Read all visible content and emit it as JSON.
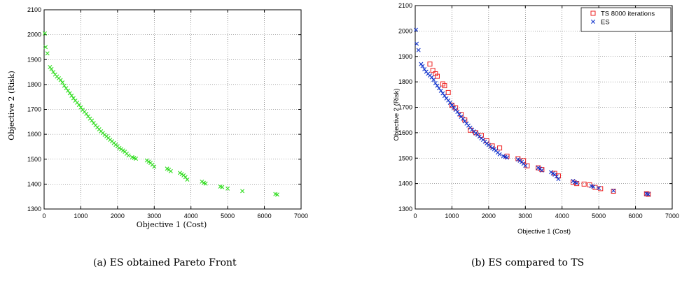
{
  "chart_data": [
    {
      "type": "scatter",
      "xlabel": "Objective 1 (Cost)",
      "ylabel": "Objective 2 (Risk)",
      "xlim": [
        0,
        7000
      ],
      "ylim": [
        1300,
        2100
      ],
      "xticks": [
        "0",
        "1000",
        "2000",
        "3000",
        "4000",
        "5000",
        "6000",
        "7000"
      ],
      "yticks": [
        "1300",
        "1400",
        "1500",
        "1600",
        "1700",
        "1800",
        "1900",
        "2000",
        "2100"
      ],
      "grid": true,
      "marker": "x",
      "color": "#33dd22",
      "caption": "(a) ES obtained Pareto Front",
      "series": [
        {
          "x": [
            20,
            40,
            90,
            160,
            200,
            250,
            300,
            350,
            400,
            450,
            500,
            550,
            600,
            650,
            700,
            750,
            800,
            850,
            900,
            950,
            1000,
            1050,
            1100,
            1150,
            1200,
            1250,
            1300,
            1350,
            1400,
            1450,
            1500,
            1550,
            1600,
            1650,
            1700,
            1750,
            1800,
            1850,
            1900,
            1950,
            2000,
            2050,
            2100,
            2150,
            2200,
            2250,
            2300,
            2400,
            2450,
            2500,
            2800,
            2850,
            2900,
            2950,
            3000,
            3350,
            3400,
            3450,
            3700,
            3750,
            3800,
            3850,
            3900,
            4300,
            4350,
            4400,
            4800,
            4850,
            5000,
            5400,
            6300,
            6350
          ],
          "y": [
            2005,
            1950,
            1925,
            1870,
            1862,
            1850,
            1840,
            1832,
            1825,
            1818,
            1808,
            1795,
            1785,
            1775,
            1765,
            1755,
            1745,
            1735,
            1727,
            1718,
            1708,
            1698,
            1690,
            1682,
            1672,
            1663,
            1655,
            1645,
            1636,
            1628,
            1620,
            1612,
            1605,
            1598,
            1592,
            1585,
            1578,
            1572,
            1565,
            1558,
            1552,
            1545,
            1540,
            1535,
            1530,
            1522,
            1515,
            1508,
            1505,
            1502,
            1495,
            1490,
            1485,
            1478,
            1470,
            1462,
            1458,
            1452,
            1445,
            1440,
            1435,
            1428,
            1418,
            1410,
            1405,
            1402,
            1390,
            1388,
            1382,
            1372,
            1360,
            1358
          ]
        }
      ]
    },
    {
      "type": "scatter",
      "xlabel": "Objective 1 (Cost)",
      "ylabel": "Objective 2 (Risk)",
      "xlim": [
        0,
        7000
      ],
      "ylim": [
        1300,
        2100
      ],
      "xticks": [
        "0",
        "1000",
        "2000",
        "3000",
        "4000",
        "5000",
        "6000",
        "7000"
      ],
      "yticks": [
        "1300",
        "1400",
        "1500",
        "1600",
        "1700",
        "1800",
        "1900",
        "2000",
        "2100"
      ],
      "grid": true,
      "legend": "top-right",
      "caption": "(b) ES compared to TS",
      "series": [
        {
          "name": "TS 8000 iterations",
          "marker": "square",
          "color": "#ee2222",
          "x": [
            400,
            480,
            550,
            600,
            750,
            800,
            900,
            1000,
            1100,
            1250,
            1350,
            1500,
            1650,
            1800,
            1950,
            2100,
            2300,
            2500,
            2800,
            2950,
            3050,
            3350,
            3450,
            3800,
            3900,
            4300,
            4400,
            4600,
            4750,
            4900,
            5050,
            5400,
            6300,
            6350
          ],
          "y": [
            1870,
            1845,
            1832,
            1822,
            1792,
            1785,
            1758,
            1708,
            1698,
            1672,
            1650,
            1610,
            1600,
            1590,
            1568,
            1548,
            1540,
            1508,
            1498,
            1490,
            1470,
            1462,
            1455,
            1440,
            1430,
            1405,
            1400,
            1398,
            1395,
            1385,
            1380,
            1370,
            1360,
            1358
          ]
        },
        {
          "name": "ES",
          "marker": "x",
          "color": "#1133cc",
          "x": [
            20,
            40,
            90,
            160,
            200,
            250,
            300,
            350,
            400,
            450,
            500,
            550,
            600,
            650,
            700,
            750,
            800,
            850,
            900,
            950,
            1000,
            1050,
            1100,
            1150,
            1200,
            1250,
            1300,
            1350,
            1400,
            1450,
            1500,
            1550,
            1600,
            1650,
            1700,
            1750,
            1800,
            1850,
            1900,
            1950,
            2000,
            2050,
            2100,
            2150,
            2200,
            2250,
            2300,
            2400,
            2450,
            2500,
            2800,
            2850,
            2900,
            2950,
            3000,
            3350,
            3400,
            3450,
            3700,
            3750,
            3800,
            3850,
            3900,
            4300,
            4350,
            4400,
            4800,
            4850,
            5000,
            5400,
            6300,
            6350
          ],
          "y": [
            2005,
            1950,
            1925,
            1870,
            1862,
            1850,
            1840,
            1832,
            1825,
            1818,
            1808,
            1795,
            1785,
            1775,
            1765,
            1755,
            1745,
            1735,
            1727,
            1718,
            1708,
            1698,
            1690,
            1682,
            1672,
            1663,
            1655,
            1645,
            1636,
            1628,
            1620,
            1612,
            1605,
            1598,
            1592,
            1585,
            1578,
            1572,
            1565,
            1558,
            1552,
            1545,
            1540,
            1535,
            1530,
            1522,
            1515,
            1508,
            1505,
            1502,
            1495,
            1490,
            1485,
            1478,
            1470,
            1462,
            1458,
            1452,
            1445,
            1440,
            1435,
            1428,
            1418,
            1410,
            1405,
            1402,
            1390,
            1388,
            1382,
            1372,
            1360,
            1358
          ]
        }
      ]
    }
  ]
}
